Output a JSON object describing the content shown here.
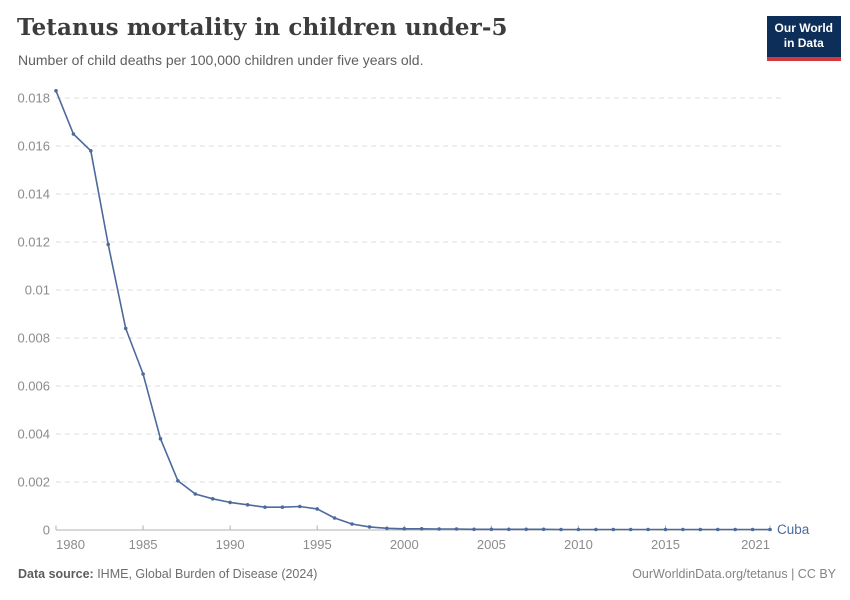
{
  "header": {
    "title": "Tetanus mortality in children under-5",
    "subtitle": "Number of child deaths per 100,000 children under five years old.",
    "logo": {
      "line1": "Our World",
      "line2": "in Data"
    }
  },
  "chart_data": {
    "type": "line",
    "title": "Tetanus mortality in children under-5",
    "subtitle": "Number of child deaths per 100,000 children under five years old.",
    "xlabel": "",
    "ylabel": "",
    "xlim": [
      1980,
      2021
    ],
    "ylim": [
      0,
      0.0185
    ],
    "grid": "horizontal dashed gridlines",
    "legend_position": "end-of-line label",
    "x_ticks": [
      1980,
      1985,
      1990,
      1995,
      2000,
      2005,
      2010,
      2015,
      2021
    ],
    "y_ticks": [
      0,
      0.002,
      0.004,
      0.006,
      0.008,
      0.01,
      0.012,
      0.014,
      0.016,
      0.018
    ],
    "y_tick_labels": [
      "0",
      "0.002",
      "0.004",
      "0.006",
      "0.008",
      "0.01",
      "0.012",
      "0.014",
      "0.016",
      "0.018"
    ],
    "series": [
      {
        "name": "Cuba",
        "color": "#4C6A9C",
        "x": [
          1980,
          1981,
          1982,
          1983,
          1984,
          1985,
          1986,
          1987,
          1988,
          1989,
          1990,
          1991,
          1992,
          1993,
          1994,
          1995,
          1996,
          1997,
          1998,
          1999,
          2000,
          2001,
          2002,
          2003,
          2004,
          2005,
          2006,
          2007,
          2008,
          2009,
          2010,
          2011,
          2012,
          2013,
          2014,
          2015,
          2016,
          2017,
          2018,
          2019,
          2020,
          2021
        ],
        "values": [
          0.0183,
          0.0165,
          0.0158,
          0.0119,
          0.0084,
          0.0065,
          0.0038,
          0.00205,
          0.0015,
          0.0013,
          0.00115,
          0.00105,
          0.00095,
          0.00095,
          0.00098,
          0.00088,
          0.0005,
          0.00025,
          0.00013,
          7e-05,
          5e-05,
          5e-05,
          4e-05,
          4e-05,
          3e-05,
          3e-05,
          3e-05,
          3e-05,
          3e-05,
          2e-05,
          2e-05,
          2e-05,
          2e-05,
          2e-05,
          2e-05,
          2e-05,
          2e-05,
          2e-05,
          2e-05,
          2e-05,
          2e-05,
          2e-05
        ]
      }
    ]
  },
  "footer": {
    "source_label": "Data source:",
    "source_text": " IHME, Global Burden of Disease (2024)",
    "credit": "OurWorldinData.org/tetanus | CC BY"
  },
  "colors": {
    "line": "#4C6A9C",
    "gridline": "#dcdcdc",
    "axis": "#b0b0b0",
    "tick_label": "#8c8c8c",
    "logo_bg": "#0d2e58",
    "logo_red": "#d4383e"
  }
}
